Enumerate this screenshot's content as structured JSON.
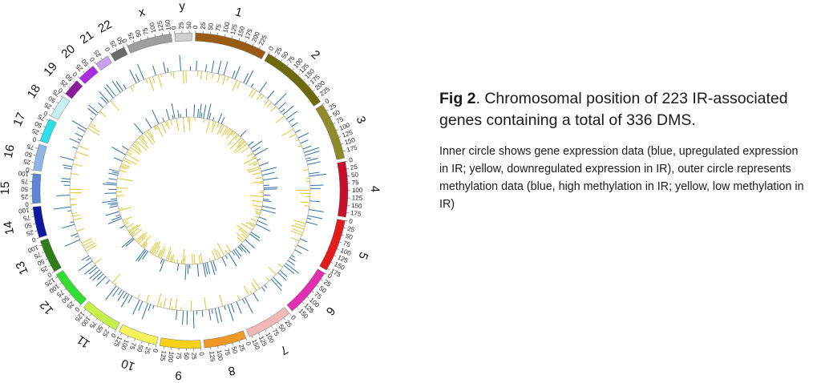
{
  "figure": {
    "title_bold": "Fig 2",
    "title_rest": ". Chromosomal position of 223 IR-associated genes containing a total of 336 DMS.",
    "description": "Inner circle shows gene expression data (blue, upregulated expression in IR; yellow, downregulated expression in IR), outer circle represents methylation data (blue, high methylation in IR; yellow, low methylation in IR)"
  },
  "chromosomes": [
    {
      "name": "1",
      "size": 249,
      "color": "#9a5b13",
      "ticks": [
        "0",
        "25",
        "50",
        "75",
        "100",
        "125",
        "150",
        "175",
        "200",
        "225"
      ]
    },
    {
      "name": "2",
      "size": 243,
      "color": "#6d6a0d",
      "ticks": [
        "0",
        "25",
        "50",
        "75",
        "100",
        "125",
        "150",
        "175",
        "200",
        "225"
      ]
    },
    {
      "name": "3",
      "size": 198,
      "color": "#8f8b2a",
      "ticks": [
        "0",
        "25",
        "50",
        "75",
        "100",
        "125",
        "150",
        "175"
      ]
    },
    {
      "name": "4",
      "size": 191,
      "color": "#c8102e",
      "ticks": [
        "0",
        "25",
        "50",
        "75",
        "100",
        "125",
        "150",
        "175"
      ]
    },
    {
      "name": "5",
      "size": 181,
      "color": "#e31b1b",
      "ticks": [
        "0",
        "25",
        "50",
        "75",
        "100",
        "125",
        "150",
        "175"
      ]
    },
    {
      "name": "6",
      "size": 171,
      "color": "#e02fb0",
      "ticks": [
        "0",
        "25",
        "50",
        "75",
        "100",
        "125",
        "150"
      ]
    },
    {
      "name": "7",
      "size": 159,
      "color": "#f2b8b8",
      "ticks": [
        "0",
        "25",
        "50",
        "75",
        "100",
        "125",
        "150"
      ]
    },
    {
      "name": "8",
      "size": 146,
      "color": "#f09826",
      "ticks": [
        "0",
        "25",
        "50",
        "75",
        "100",
        "125"
      ]
    },
    {
      "name": "9",
      "size": 141,
      "color": "#f8d21a",
      "ticks": [
        "0",
        "25",
        "50",
        "75",
        "100",
        "125"
      ]
    },
    {
      "name": "10",
      "size": 135,
      "color": "#f7f25a",
      "ticks": [
        "0",
        "25",
        "50",
        "75",
        "100",
        "125"
      ]
    },
    {
      "name": "11",
      "size": 135,
      "color": "#c7f04a",
      "ticks": [
        "0",
        "25",
        "50",
        "75",
        "100",
        "125"
      ]
    },
    {
      "name": "12",
      "size": 133,
      "color": "#33dd33",
      "ticks": [
        "0",
        "25",
        "50",
        "75",
        "100",
        "125"
      ]
    },
    {
      "name": "13",
      "size": 115,
      "color": "#2e7d1a",
      "ticks": [
        "0",
        "25",
        "50",
        "75",
        "100"
      ]
    },
    {
      "name": "14",
      "size": 107,
      "color": "#1018a0",
      "ticks": [
        "0",
        "25",
        "50",
        "75",
        "100"
      ]
    },
    {
      "name": "15",
      "size": 102,
      "color": "#5b86d6",
      "ticks": [
        "0",
        "25",
        "50",
        "75",
        "100"
      ]
    },
    {
      "name": "16",
      "size": 90,
      "color": "#8fb4e6",
      "ticks": [
        "0",
        "25",
        "50",
        "75"
      ]
    },
    {
      "name": "17",
      "size": 81,
      "color": "#2de0e8",
      "ticks": [
        "0",
        "25",
        "50",
        "75"
      ]
    },
    {
      "name": "18",
      "size": 78,
      "color": "#c8f2f2",
      "ticks": [
        "0",
        "25",
        "50",
        "75"
      ]
    },
    {
      "name": "19",
      "size": 59,
      "color": "#8a1a9a",
      "ticks": [
        "0",
        "25",
        "50"
      ]
    },
    {
      "name": "20",
      "size": 63,
      "color": "#a92ee0",
      "ticks": [
        "0",
        "25",
        "50"
      ]
    },
    {
      "name": "21",
      "size": 48,
      "color": "#c9a0ec",
      "ticks": [
        "0",
        "25"
      ]
    },
    {
      "name": "22",
      "size": 51,
      "color": "#6a6a6a",
      "ticks": [
        "0",
        "25",
        "50"
      ]
    },
    {
      "name": "x",
      "size": 155,
      "color": "#9e9e9e",
      "ticks": [
        "0",
        "25",
        "50",
        "75",
        "100",
        "125",
        "150"
      ]
    },
    {
      "name": "y",
      "size": 59,
      "color": "#cfcfcf",
      "ticks": [
        "0",
        "25",
        "50"
      ]
    }
  ],
  "colors": {
    "blue": "#2f6fa6",
    "yellow": "#e2c52a",
    "track_line": "#999999"
  }
}
